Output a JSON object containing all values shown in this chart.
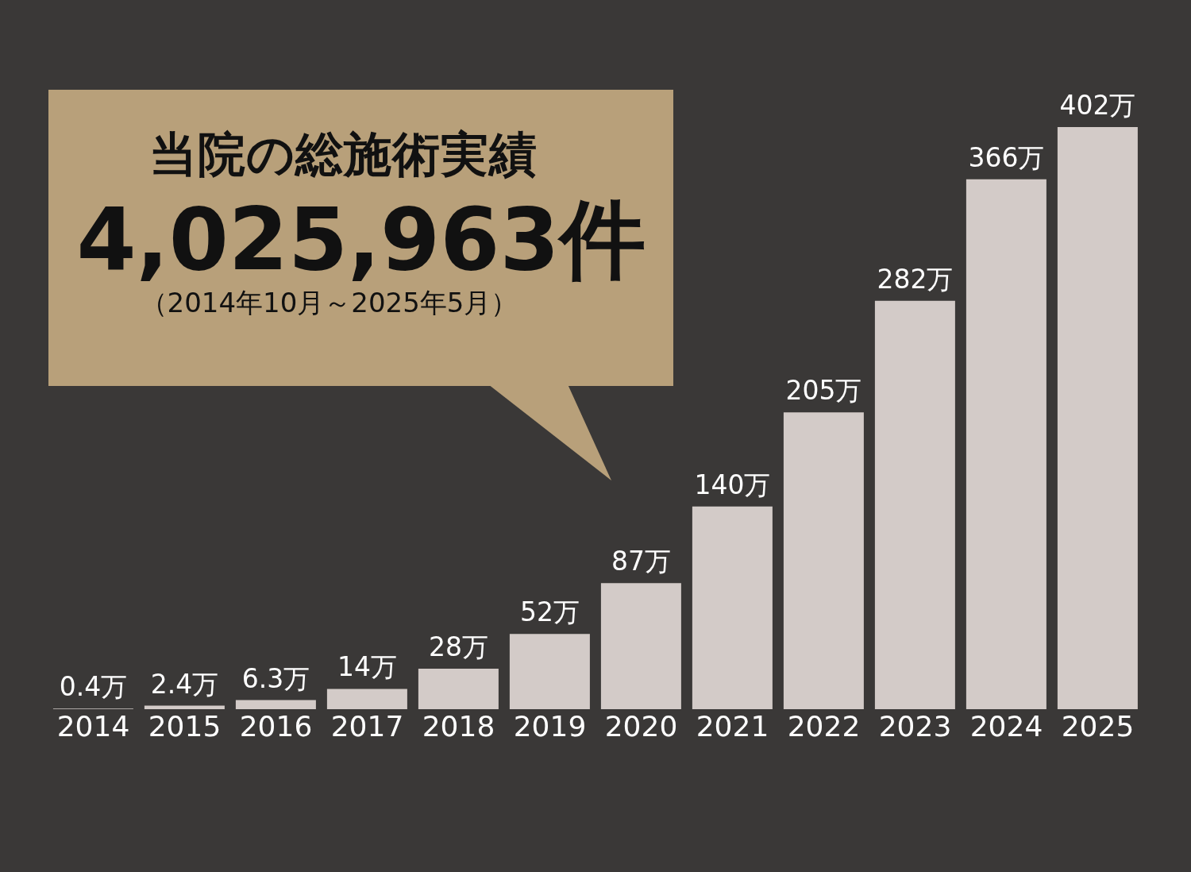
{
  "chart_data": {
    "type": "bar",
    "title": "当院の総施術実績",
    "annotations": [
      "4,025,963件",
      "（2014年10月～2025年5月）"
    ],
    "categories": [
      "2014",
      "2015",
      "2016",
      "2017",
      "2018",
      "2019",
      "2020",
      "2021",
      "2022",
      "2023",
      "2024",
      "2025"
    ],
    "values": [
      0.4,
      2.4,
      6.3,
      14,
      28,
      52,
      87,
      140,
      205,
      282,
      366,
      402
    ],
    "value_labels": [
      "0.4万",
      "2.4万",
      "6.3万",
      "14万",
      "28万",
      "52万",
      "87万",
      "140万",
      "205万",
      "282万",
      "366万",
      "402万"
    ],
    "color": "#d3cbc8"
  }
}
